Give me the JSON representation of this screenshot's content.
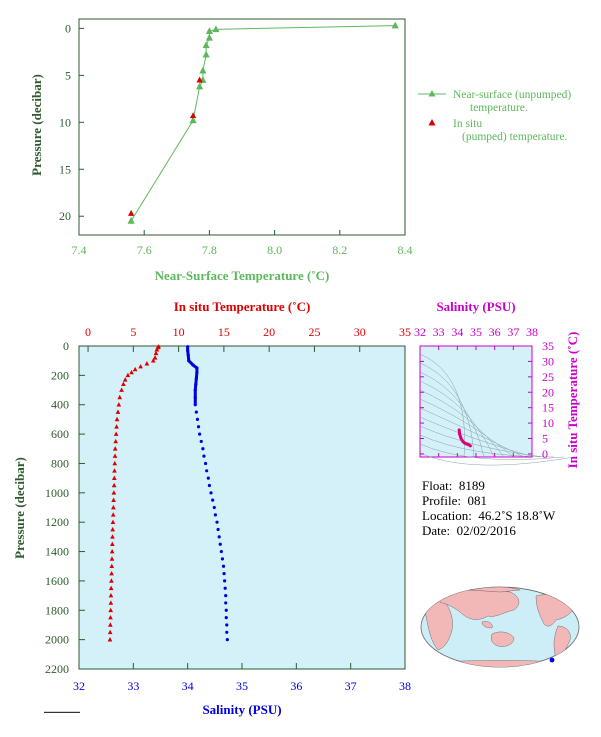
{
  "chart_data": [
    {
      "type": "line",
      "xlabel": "Near-Surface Temperature (˚C)",
      "ylabel": "Pressure (decibar)",
      "xlim": [
        7.4,
        8.4
      ],
      "ylim": [
        22,
        -1
      ],
      "xticks": [
        "7.4",
        "7.6",
        "7.8",
        "8.0",
        "8.2",
        "8.4"
      ],
      "yticks": [
        "0",
        "5",
        "10",
        "15",
        "20"
      ],
      "legend_position": "right",
      "series": [
        {
          "name": "Near-surface (unpumped) temperature.",
          "color": "#5cb85c",
          "marker": "triangle",
          "points": [
            [
              8.37,
              -0.3
            ],
            [
              7.82,
              0.1
            ],
            [
              7.8,
              0.3
            ],
            [
              7.8,
              1.0
            ],
            [
              7.79,
              1.8
            ],
            [
              7.79,
              2.8
            ],
            [
              7.78,
              4.5
            ],
            [
              7.78,
              5.5
            ],
            [
              7.77,
              6.2
            ],
            [
              7.75,
              9.8
            ],
            [
              7.56,
              20.5
            ]
          ]
        },
        {
          "name": "In situ (pumped) temperature.",
          "color": "#dd0000",
          "marker": "triangle",
          "points": [
            [
              7.77,
              5.5
            ],
            [
              7.75,
              9.3
            ],
            [
              7.56,
              19.7
            ]
          ]
        }
      ]
    },
    {
      "type": "line",
      "ylabel": "Pressure (decibar)",
      "xlabel_top": "In situ Temperature (˚C)",
      "xlabel_bottom": "Salinity (PSU)",
      "ylim": [
        2200,
        0
      ],
      "yticks": [
        "0",
        "200",
        "400",
        "600",
        "800",
        "1000",
        "1200",
        "1400",
        "1600",
        "1800",
        "2000",
        "2200"
      ],
      "temperature_ticks": [
        "0",
        "5",
        "10",
        "15",
        "20",
        "25",
        "30",
        "35"
      ],
      "salinity_ticks": [
        "32",
        "33",
        "34",
        "35",
        "36",
        "37",
        "38"
      ],
      "temperature_range": [
        -1,
        35
      ],
      "salinity_range": [
        32,
        38
      ],
      "series": [
        {
          "name": "Temperature",
          "color": "#dd0000",
          "marker": "triangle",
          "axis": "top",
          "points": [
            [
              7.8,
              5
            ],
            [
              7.7,
              10
            ],
            [
              7.6,
              25
            ],
            [
              7.5,
              50
            ],
            [
              7.4,
              80
            ],
            [
              7.2,
              100
            ],
            [
              6.5,
              120
            ],
            [
              5.8,
              140
            ],
            [
              5.2,
              160
            ],
            [
              4.8,
              180
            ],
            [
              4.4,
              200
            ],
            [
              4.1,
              230
            ],
            [
              3.9,
              260
            ],
            [
              3.7,
              300
            ],
            [
              3.5,
              350
            ],
            [
              3.4,
              400
            ],
            [
              3.3,
              450
            ],
            [
              3.2,
              500
            ],
            [
              3.15,
              550
            ],
            [
              3.1,
              600
            ],
            [
              3.05,
              650
            ],
            [
              3.0,
              700
            ],
            [
              2.98,
              750
            ],
            [
              2.95,
              800
            ],
            [
              2.92,
              850
            ],
            [
              2.9,
              900
            ],
            [
              2.88,
              950
            ],
            [
              2.85,
              1000
            ],
            [
              2.82,
              1050
            ],
            [
              2.8,
              1100
            ],
            [
              2.78,
              1150
            ],
            [
              2.75,
              1200
            ],
            [
              2.72,
              1250
            ],
            [
              2.7,
              1300
            ],
            [
              2.68,
              1350
            ],
            [
              2.66,
              1400
            ],
            [
              2.64,
              1450
            ],
            [
              2.62,
              1500
            ],
            [
              2.6,
              1550
            ],
            [
              2.58,
              1600
            ],
            [
              2.55,
              1650
            ],
            [
              2.53,
              1700
            ],
            [
              2.52,
              1750
            ],
            [
              2.5,
              1800
            ],
            [
              2.48,
              1850
            ],
            [
              2.46,
              1900
            ],
            [
              2.44,
              1950
            ],
            [
              2.42,
              2000
            ]
          ]
        },
        {
          "name": "Salinity",
          "color": "#0000dd",
          "marker": "dot",
          "axis": "bottom",
          "points": [
            [
              34.0,
              5
            ],
            [
              34.0,
              30
            ],
            [
              34.01,
              60
            ],
            [
              34.02,
              100
            ],
            [
              34.1,
              130
            ],
            [
              34.17,
              150
            ],
            [
              34.17,
              180
            ],
            [
              34.16,
              220
            ],
            [
              34.15,
              260
            ],
            [
              34.14,
              300
            ],
            [
              34.14,
              350
            ],
            [
              34.14,
              400
            ],
            [
              34.16,
              450
            ],
            [
              34.18,
              500
            ],
            [
              34.2,
              550
            ],
            [
              34.22,
              600
            ],
            [
              34.25,
              650
            ],
            [
              34.28,
              700
            ],
            [
              34.3,
              750
            ],
            [
              34.33,
              800
            ],
            [
              34.35,
              850
            ],
            [
              34.38,
              900
            ],
            [
              34.4,
              950
            ],
            [
              34.43,
              1000
            ],
            [
              34.46,
              1050
            ],
            [
              34.49,
              1100
            ],
            [
              34.51,
              1150
            ],
            [
              34.54,
              1200
            ],
            [
              34.56,
              1250
            ],
            [
              34.58,
              1300
            ],
            [
              34.6,
              1350
            ],
            [
              34.62,
              1400
            ],
            [
              34.64,
              1450
            ],
            [
              34.66,
              1500
            ],
            [
              34.67,
              1550
            ],
            [
              34.68,
              1600
            ],
            [
              34.69,
              1650
            ],
            [
              34.7,
              1700
            ],
            [
              34.7,
              1750
            ],
            [
              34.71,
              1800
            ],
            [
              34.71,
              1850
            ],
            [
              34.72,
              1900
            ],
            [
              34.72,
              1950
            ],
            [
              34.73,
              2000
            ]
          ]
        }
      ]
    },
    {
      "type": "scatter",
      "title": "Salinity (PSU)",
      "ylabel": "In situ Temperature (˚C)",
      "x_ticks": [
        "32",
        "33",
        "34",
        "35",
        "36",
        "37",
        "38"
      ],
      "y_ticks": [
        "0",
        "5",
        "10",
        "15",
        "20",
        "25",
        "30",
        "35"
      ],
      "xlim": [
        32,
        38
      ],
      "ylim": [
        -1,
        35
      ],
      "color": "#e0007a",
      "points": [
        [
          34.1,
          7.8
        ],
        [
          34.12,
          6.5
        ],
        [
          34.2,
          5.0
        ],
        [
          34.3,
          4.0
        ],
        [
          34.4,
          3.5
        ],
        [
          34.5,
          3.2
        ],
        [
          34.6,
          3.0
        ],
        [
          34.7,
          2.6
        ]
      ]
    }
  ],
  "float_info": {
    "float_label": "Float:",
    "float_value": "8189",
    "profile_label": "Profile:",
    "profile_value": "081",
    "location_label": "Location:",
    "location_value": "46.2˚S  18.8˚W",
    "date_label": "Date:",
    "date_value": "02/02/2016"
  },
  "colors": {
    "green": "#5cb85c",
    "red": "#dd0000",
    "blue": "#0000dd",
    "magenta": "#cc00cc",
    "axis_green": "#2e5a2e",
    "panel_bg": "#d4f0f8",
    "land": "#f2b8b8",
    "ocean": "#cdeef7"
  },
  "map": {
    "marker": "float position"
  }
}
